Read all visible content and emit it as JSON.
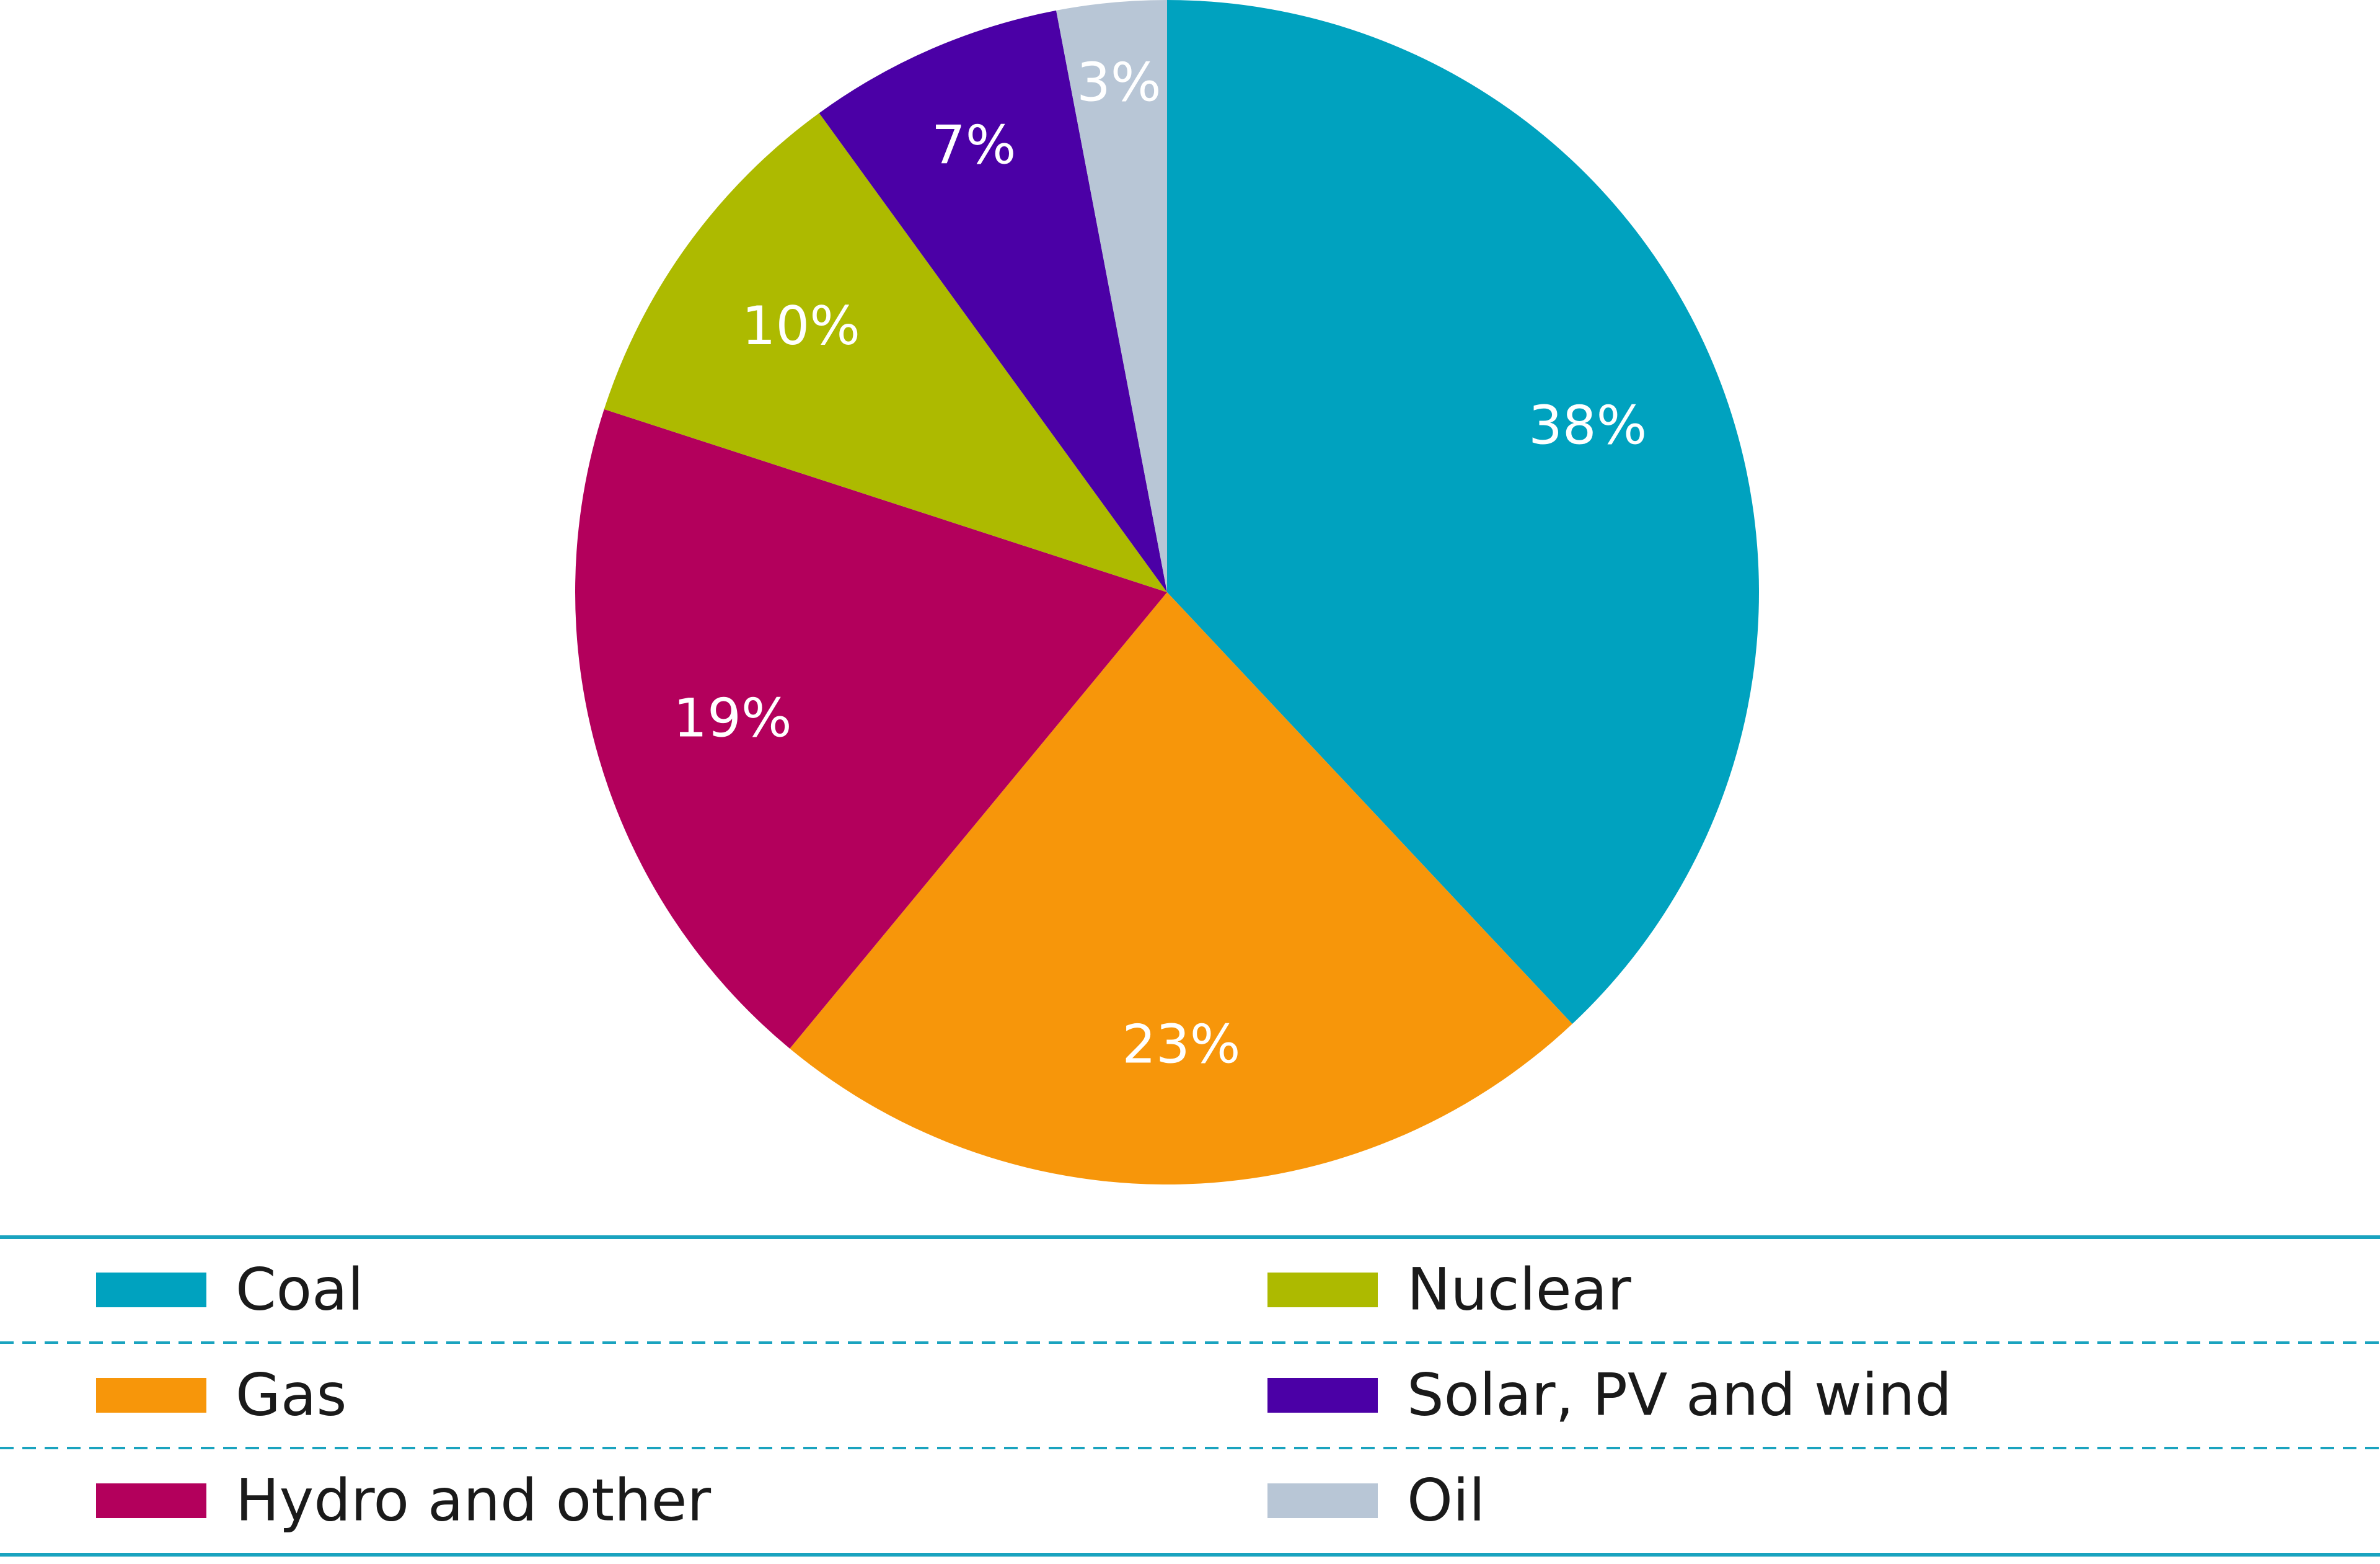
{
  "chart_data": {
    "type": "pie",
    "start_angle_deg": 0,
    "direction": "clockwise",
    "slices": [
      {
        "name": "Coal",
        "value": 38,
        "label": "38%",
        "color": "#00a2bf"
      },
      {
        "name": "Gas",
        "value": 23,
        "label": "23%",
        "color": "#f7960a"
      },
      {
        "name": "Hydro and other",
        "value": 19,
        "label": "19%",
        "color": "#b3005c"
      },
      {
        "name": "Nuclear",
        "value": 10,
        "label": "10%",
        "color": "#adba00"
      },
      {
        "name": "Solar, PV and wind",
        "value": 7,
        "label": "7%",
        "color": "#4b00a6"
      },
      {
        "name": "Oil",
        "value": 3,
        "label": "3%",
        "color": "#b8c6d6"
      }
    ],
    "legend": {
      "placement": "bottom",
      "columns": 2,
      "items": [
        {
          "name": "Coal",
          "color": "#00a2bf"
        },
        {
          "name": "Nuclear",
          "color": "#adba00"
        },
        {
          "name": "Gas",
          "color": "#f7960a"
        },
        {
          "name": "Solar, PV and wind",
          "color": "#4b00a6"
        },
        {
          "name": "Hydro and other",
          "color": "#b3005c"
        },
        {
          "name": "Oil",
          "color": "#b8c6d6"
        }
      ]
    },
    "rule_color": "#1aa3bf"
  }
}
